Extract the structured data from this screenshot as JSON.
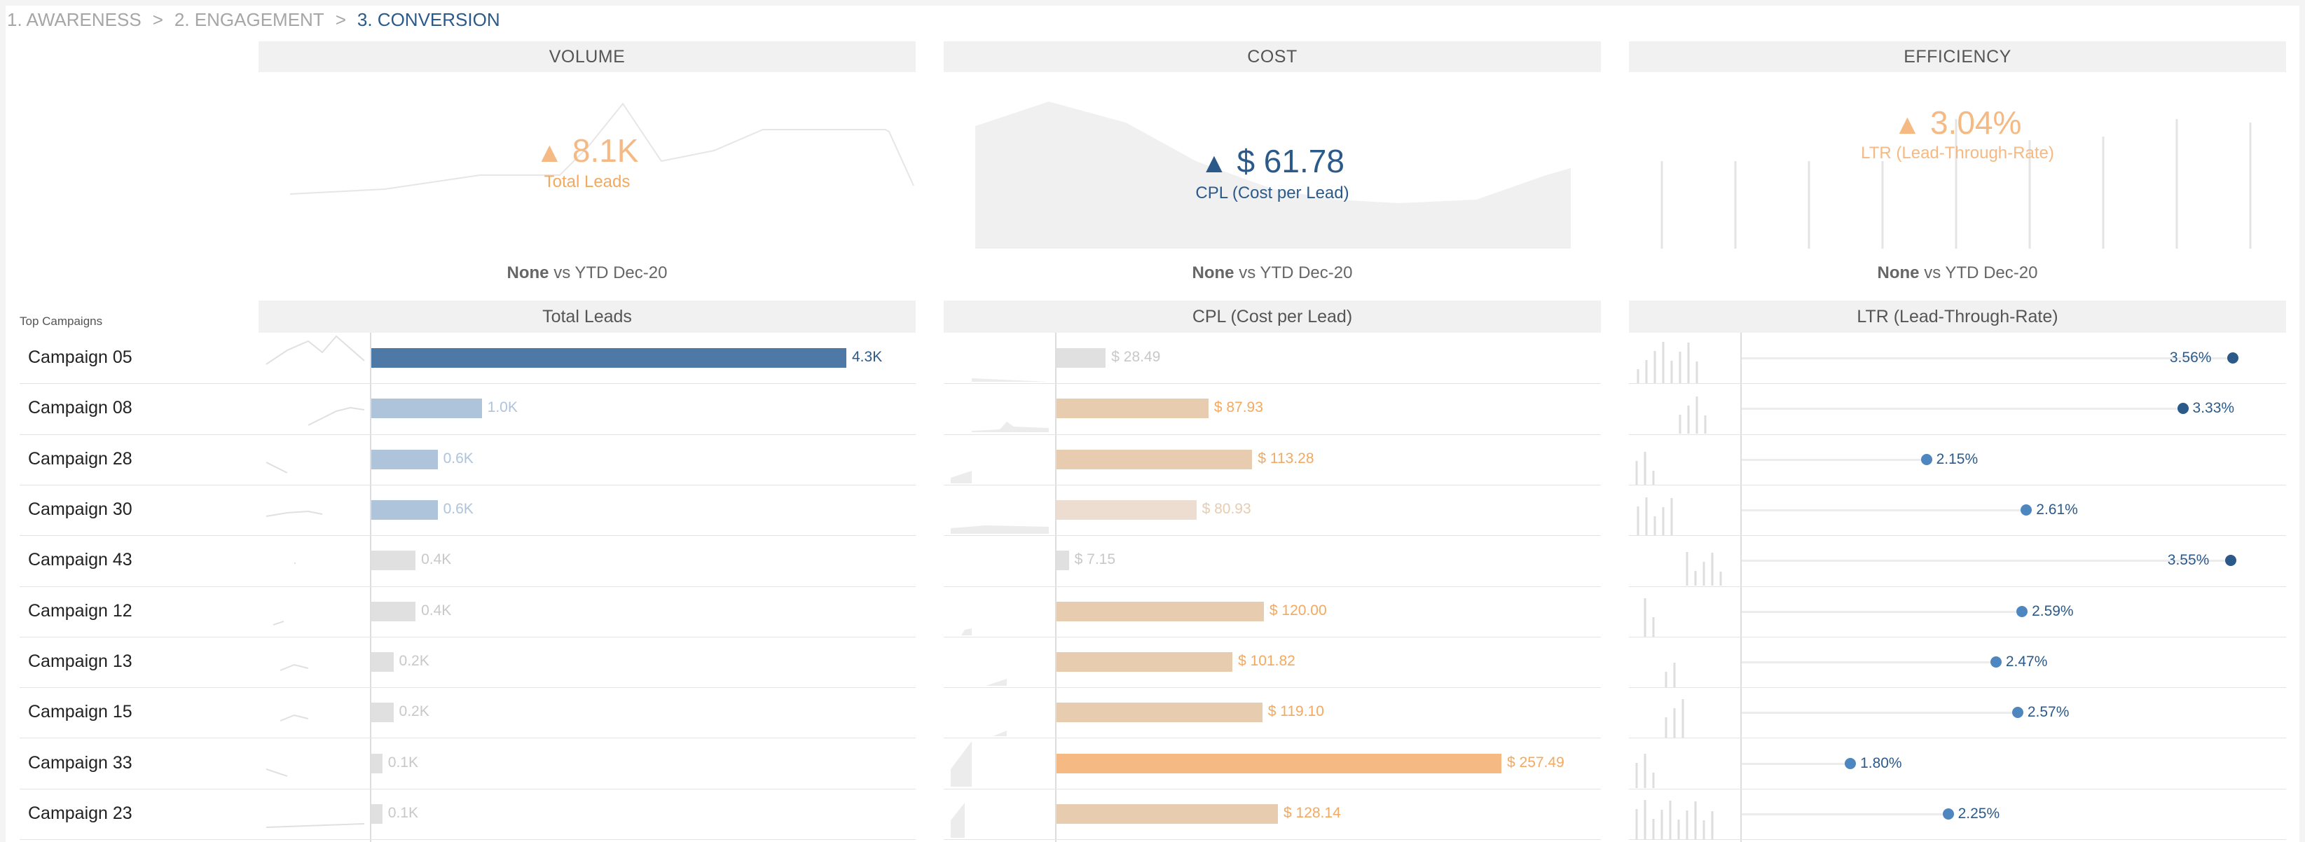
{
  "breadcrumb": {
    "steps": [
      "1. AWARENESS",
      "2. ENGAGEMENT",
      "3. CONVERSION"
    ],
    "separator": ">",
    "active_index": 2
  },
  "colors": {
    "blue_dark": "#4e79a7",
    "blue_light": "#aec4da",
    "navy": "#2b5a8a",
    "orange": "#f5b983",
    "orange_text": "#f3a95f",
    "tan": "#e8ccaf",
    "gray_bar": "#e0e0e0",
    "gray_text": "#c8c8c8",
    "dot_blue": "#4e86c0"
  },
  "kpis": [
    {
      "header": "VOLUME",
      "arrow": "▲",
      "value": "8.1K",
      "label": "Total Leads",
      "comparison_bold": "None",
      "comparison_rest": " vs YTD Dec-20"
    },
    {
      "header": "COST",
      "arrow": "▲",
      "value": "$ 61.78",
      "label": "CPL (Cost per Lead)",
      "comparison_bold": "None",
      "comparison_rest": " vs YTD Dec-20"
    },
    {
      "header": "EFFICIENCY",
      "arrow": "▲",
      "value": "3.04%",
      "label": "LTR (Lead-Through-Rate)",
      "comparison_bold": "None",
      "comparison_rest": " vs YTD Dec-20"
    }
  ],
  "table": {
    "title": "Top Campaigns",
    "sections": [
      "Total Leads",
      "CPL (Cost per Lead)",
      "LTR (Lead-Through-Rate)"
    ],
    "rows": [
      {
        "campaign": "Campaign 05",
        "leads": 4.3,
        "leads_label": "4.3K",
        "cpl": 28.49,
        "cpl_label": "$ 28.49",
        "ltr": 3.56,
        "ltr_label": "3.56%"
      },
      {
        "campaign": "Campaign 08",
        "leads": 1.0,
        "leads_label": "1.0K",
        "cpl": 87.93,
        "cpl_label": "$ 87.93",
        "ltr": 3.33,
        "ltr_label": "3.33%"
      },
      {
        "campaign": "Campaign 28",
        "leads": 0.6,
        "leads_label": "0.6K",
        "cpl": 113.28,
        "cpl_label": "$ 113.28",
        "ltr": 2.15,
        "ltr_label": "2.15%"
      },
      {
        "campaign": "Campaign 30",
        "leads": 0.6,
        "leads_label": "0.6K",
        "cpl": 80.93,
        "cpl_label": "$ 80.93",
        "ltr": 2.61,
        "ltr_label": "2.61%"
      },
      {
        "campaign": "Campaign 43",
        "leads": 0.4,
        "leads_label": "0.4K",
        "cpl": 7.15,
        "cpl_label": "$ 7.15",
        "ltr": 3.55,
        "ltr_label": "3.55%"
      },
      {
        "campaign": "Campaign 12",
        "leads": 0.4,
        "leads_label": "0.4K",
        "cpl": 120.0,
        "cpl_label": "$ 120.00",
        "ltr": 2.59,
        "ltr_label": "2.59%"
      },
      {
        "campaign": "Campaign 13",
        "leads": 0.2,
        "leads_label": "0.2K",
        "cpl": 101.82,
        "cpl_label": "$ 101.82",
        "ltr": 2.47,
        "ltr_label": "2.47%"
      },
      {
        "campaign": "Campaign 15",
        "leads": 0.2,
        "leads_label": "0.2K",
        "cpl": 119.1,
        "cpl_label": "$ 119.10",
        "ltr": 2.57,
        "ltr_label": "2.57%"
      },
      {
        "campaign": "Campaign 33",
        "leads": 0.1,
        "leads_label": "0.1K",
        "cpl": 257.49,
        "cpl_label": "$ 257.49",
        "ltr": 1.8,
        "ltr_label": "1.80%"
      },
      {
        "campaign": "Campaign 23",
        "leads": 0.1,
        "leads_label": "0.1K",
        "cpl": 128.14,
        "cpl_label": "$ 128.14",
        "ltr": 2.25,
        "ltr_label": "2.25%"
      }
    ]
  }
}
